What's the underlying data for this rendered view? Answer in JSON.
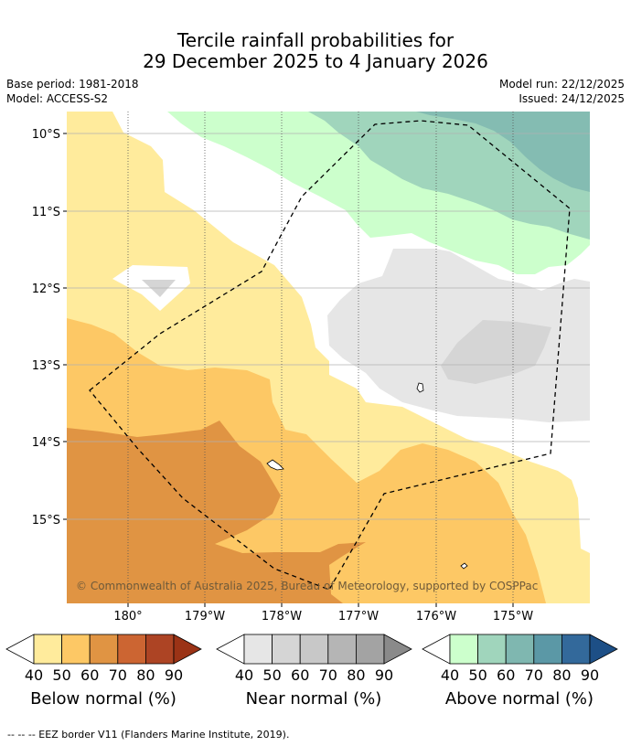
{
  "title": {
    "line1": "Tercile rainfall probabilities for",
    "line2": "29 December 2025 to 4 January 2026"
  },
  "meta": {
    "base_period": "Base period: 1981-2018",
    "model": "Model: ACCESS-S2",
    "model_run": "Model run: 22/12/2025",
    "issued": "Issued: 24/12/2025"
  },
  "map": {
    "lat_labels": [
      "10°S",
      "11°S",
      "12°S",
      "13°S",
      "14°S",
      "15°S"
    ],
    "lon_labels": [
      "180°",
      "179°W",
      "178°W",
      "177°W",
      "176°W",
      "175°W"
    ],
    "copyright": "© Commonwealth of Australia 2025, Bureau of Meteorology, supported by COSPPac"
  },
  "legend": {
    "below": {
      "title": "Below normal (%)",
      "ticks": [
        "40",
        "50",
        "60",
        "70",
        "80",
        "90"
      ],
      "colors": [
        "#ffeb9c",
        "#fdc865",
        "#e09443",
        "#cc6532",
        "#ad4424",
        "#9b3316"
      ]
    },
    "near": {
      "title": "Near normal (%)",
      "ticks": [
        "40",
        "50",
        "60",
        "70",
        "80",
        "90"
      ],
      "colors": [
        "#e6e6e6",
        "#d5d5d5",
        "#c8c8c8",
        "#b5b5b5",
        "#a3a3a3",
        "#8a8a8a"
      ]
    },
    "above": {
      "title": "Above normal (%)",
      "ticks": [
        "40",
        "50",
        "60",
        "70",
        "80",
        "90"
      ],
      "colors": [
        "#ccffcc",
        "#a0d5bc",
        "#7fb7b0",
        "#5b98a6",
        "#33699b",
        "#1d4f86"
      ]
    }
  },
  "footnote": "--  --  -- EEZ border V11 (Flanders Marine Institute, 2019)."
}
